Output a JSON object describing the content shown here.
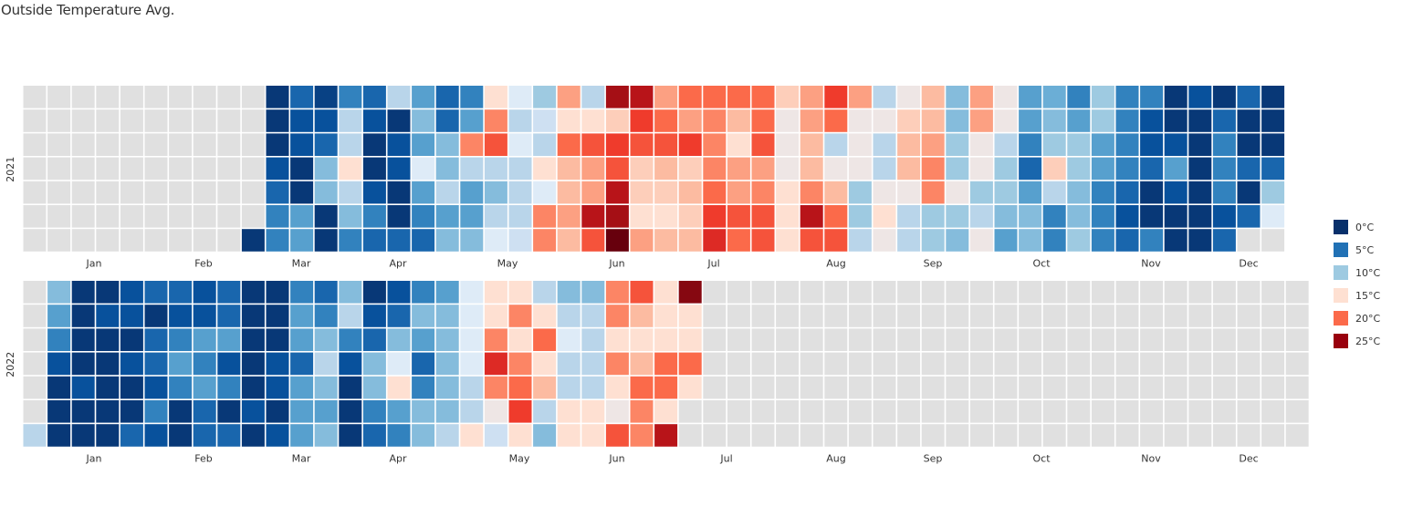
{
  "title": "Outside Temperature Avg.",
  "chart_data": {
    "type": "heatmap",
    "title": "Outside Temperature Avg.",
    "layout": "calendar",
    "unit": "°C",
    "years": [
      {
        "year": "2021",
        "month_labels": [
          "Jan",
          "Feb",
          "Mar",
          "Apr",
          "May",
          "Jun",
          "Jul",
          "Aug",
          "Sep",
          "Oct",
          "Nov",
          "Dec"
        ],
        "week_temperatures": [
          [
            null,
            null,
            null,
            null,
            null,
            null,
            null
          ],
          [
            null,
            null,
            null,
            null,
            null,
            null,
            null
          ],
          [
            null,
            null,
            null,
            null,
            null,
            null,
            null
          ],
          [
            null,
            null,
            null,
            null,
            null,
            null,
            null
          ],
          [
            null,
            null,
            null,
            null,
            null,
            null,
            null
          ],
          [
            null,
            null,
            null,
            null,
            null,
            null,
            null
          ],
          [
            null,
            null,
            null,
            null,
            null,
            null,
            null
          ],
          [
            null,
            null,
            null,
            null,
            null,
            null,
            null
          ],
          [
            null,
            null,
            null,
            null,
            null,
            null,
            null
          ],
          [
            null,
            null,
            null,
            null,
            null,
            null,
            -1
          ],
          [
            -1,
            -1,
            -1,
            2,
            4,
            6,
            6
          ],
          [
            4,
            2,
            2,
            -1,
            -1,
            8,
            8
          ],
          [
            0,
            2,
            4,
            10,
            10,
            -1,
            -1
          ],
          [
            6,
            12,
            12,
            16,
            12,
            10,
            6
          ],
          [
            4,
            2,
            -1,
            -1,
            2,
            6,
            4
          ],
          [
            12,
            -1,
            2,
            2,
            -1,
            -1,
            4
          ],
          [
            8,
            10,
            8,
            14,
            8,
            6,
            4
          ],
          [
            4,
            4,
            10,
            10,
            12,
            8,
            10
          ],
          [
            6,
            8,
            20,
            12,
            8,
            8,
            10
          ],
          [
            16,
            20,
            22,
            12,
            10,
            12,
            14
          ],
          [
            14,
            12,
            14,
            12,
            12,
            12,
            13
          ],
          [
            11,
            13,
            12,
            16,
            14,
            20,
            20
          ],
          [
            19,
            16,
            21,
            18,
            18,
            19,
            18
          ],
          [
            12,
            16,
            22,
            19,
            19,
            26,
            22
          ],
          [
            27,
            17,
            23,
            22,
            26,
            27,
            29
          ],
          [
            26,
            23,
            22,
            17,
            17,
            16,
            19
          ],
          [
            19,
            21,
            22,
            18,
            17,
            16,
            18
          ],
          [
            21,
            19,
            23,
            17,
            18,
            17,
            18
          ],
          [
            21,
            20,
            20,
            20,
            21,
            23,
            24
          ],
          [
            21,
            18,
            16,
            19,
            19,
            22,
            21
          ],
          [
            21,
            21,
            22,
            19,
            20,
            22,
            22
          ],
          [
            17,
            15,
            15,
            15,
            16,
            16,
            16
          ],
          [
            19,
            19,
            18,
            18,
            20,
            26,
            22
          ],
          [
            23,
            21,
            12,
            15,
            18,
            21,
            22
          ],
          [
            19,
            15,
            15,
            15,
            11,
            11,
            12
          ],
          [
            12,
            15,
            12,
            12,
            15,
            16,
            15
          ],
          [
            15,
            17,
            18,
            18,
            15,
            12,
            12
          ],
          [
            18,
            18,
            19,
            20,
            20,
            11,
            11
          ],
          [
            10,
            10,
            11,
            11,
            15,
            11,
            10
          ],
          [
            19,
            19,
            15,
            15,
            11,
            12,
            15
          ],
          [
            15,
            15,
            12,
            11,
            11,
            10,
            8
          ],
          [
            8,
            8,
            6,
            4,
            8,
            10,
            10
          ],
          [
            9,
            10,
            11,
            17,
            12,
            6,
            6
          ],
          [
            6,
            8,
            11,
            11,
            10,
            10,
            11
          ],
          [
            11,
            11,
            8,
            8,
            6,
            6,
            6
          ],
          [
            6,
            6,
            6,
            6,
            4,
            2,
            4
          ],
          [
            6,
            2,
            2,
            4,
            -1,
            -1,
            6
          ],
          [
            -1,
            -1,
            2,
            8,
            2,
            -1,
            -1
          ],
          [
            2,
            -1,
            -1,
            -1,
            -1,
            -1,
            -1
          ],
          [
            -1,
            4,
            6,
            6,
            6,
            2,
            4
          ],
          [
            4,
            -1,
            -1,
            4,
            -1,
            4,
            null
          ],
          [
            -1,
            -1,
            -1,
            4,
            11,
            14,
            null
          ]
        ]
      },
      {
        "year": "2022",
        "month_labels": [
          "Jan",
          "Feb",
          "Mar",
          "Apr",
          "May",
          "Jun",
          "Jul",
          "Aug",
          "Sep",
          "Oct",
          "Nov",
          "Dec"
        ],
        "week_temperatures": [
          [
            null,
            null,
            null,
            null,
            null,
            null,
            12
          ],
          [
            10,
            8,
            6,
            2,
            -1,
            -1,
            -1
          ],
          [
            -1,
            -1,
            -1,
            -1,
            2,
            -1,
            -1
          ],
          [
            -1,
            2,
            -1,
            -1,
            -1,
            -1,
            -1
          ],
          [
            2,
            2,
            -1,
            2,
            -1,
            -1,
            4
          ],
          [
            4,
            -1,
            4,
            4,
            2,
            6,
            2
          ],
          [
            4,
            2,
            6,
            8,
            6,
            -1,
            -1
          ],
          [
            2,
            2,
            8,
            6,
            8,
            4,
            4
          ],
          [
            4,
            4,
            8,
            2,
            6,
            -1,
            4
          ],
          [
            -1,
            -1,
            -1,
            -1,
            -1,
            2,
            -1
          ],
          [
            -1,
            -1,
            -1,
            2,
            2,
            -1,
            2
          ],
          [
            6,
            8,
            8,
            4,
            8,
            8,
            8
          ],
          [
            4,
            6,
            10,
            12,
            10,
            8,
            10
          ],
          [
            10,
            12,
            6,
            2,
            -1,
            -1,
            -1
          ],
          [
            -1,
            2,
            4,
            10,
            10,
            6,
            4
          ],
          [
            2,
            4,
            10,
            14,
            16,
            8,
            6
          ],
          [
            6,
            10,
            8,
            4,
            6,
            10,
            10
          ],
          [
            8,
            10,
            10,
            10,
            10,
            10,
            12
          ],
          [
            14,
            14,
            14,
            14,
            12,
            12,
            16
          ],
          [
            16,
            16,
            20,
            24,
            20,
            15,
            13
          ],
          [
            16,
            20,
            16,
            20,
            21,
            23,
            16
          ],
          [
            12,
            16,
            21,
            16,
            18,
            12,
            10
          ],
          [
            10,
            12,
            14,
            12,
            12,
            16,
            16
          ],
          [
            10,
            12,
            12,
            12,
            12,
            16,
            16
          ],
          [
            20,
            20,
            16,
            20,
            16,
            15,
            22
          ],
          [
            22,
            18,
            16,
            18,
            21,
            20,
            20
          ],
          [
            16,
            16,
            16,
            21,
            21,
            16,
            26
          ],
          [
            28,
            16,
            16,
            21,
            16,
            null,
            null
          ],
          [
            null,
            null,
            null,
            null,
            null,
            null,
            null
          ],
          [
            null,
            null,
            null,
            null,
            null,
            null,
            null
          ],
          [
            null,
            null,
            null,
            null,
            null,
            null,
            null
          ],
          [
            null,
            null,
            null,
            null,
            null,
            null,
            null
          ],
          [
            null,
            null,
            null,
            null,
            null,
            null,
            null
          ],
          [
            null,
            null,
            null,
            null,
            null,
            null,
            null
          ],
          [
            null,
            null,
            null,
            null,
            null,
            null,
            null
          ],
          [
            null,
            null,
            null,
            null,
            null,
            null,
            null
          ],
          [
            null,
            null,
            null,
            null,
            null,
            null,
            null
          ],
          [
            null,
            null,
            null,
            null,
            null,
            null,
            null
          ],
          [
            null,
            null,
            null,
            null,
            null,
            null,
            null
          ],
          [
            null,
            null,
            null,
            null,
            null,
            null,
            null
          ],
          [
            null,
            null,
            null,
            null,
            null,
            null,
            null
          ],
          [
            null,
            null,
            null,
            null,
            null,
            null,
            null
          ],
          [
            null,
            null,
            null,
            null,
            null,
            null,
            null
          ],
          [
            null,
            null,
            null,
            null,
            null,
            null,
            null
          ],
          [
            null,
            null,
            null,
            null,
            null,
            null,
            null
          ],
          [
            null,
            null,
            null,
            null,
            null,
            null,
            null
          ],
          [
            null,
            null,
            null,
            null,
            null,
            null,
            null
          ],
          [
            null,
            null,
            null,
            null,
            null,
            null,
            null
          ],
          [
            null,
            null,
            null,
            null,
            null,
            null,
            null
          ],
          [
            null,
            null,
            null,
            null,
            null,
            null,
            null
          ],
          [
            null,
            null,
            null,
            null,
            null,
            null,
            null
          ],
          [
            null,
            null,
            null,
            null,
            null,
            null,
            null
          ],
          [
            null,
            null,
            null,
            null,
            null,
            null,
            null
          ]
        ]
      }
    ],
    "legend": {
      "placement": "right",
      "entries": [
        {
          "label": "0°C",
          "value": 0,
          "color": "#08306b"
        },
        {
          "label": "5°C",
          "value": 5,
          "color": "#2171b5"
        },
        {
          "label": "10°C",
          "value": 10,
          "color": "#9ecae1"
        },
        {
          "label": "15°C",
          "value": 15,
          "color": "#fee0d2"
        },
        {
          "label": "20°C",
          "value": 20,
          "color": "#fb6a4a"
        },
        {
          "label": "25°C",
          "value": 25,
          "color": "#99000d"
        }
      ]
    },
    "color_scale": [
      {
        "t": -2,
        "color": "#08306b"
      },
      {
        "t": 2,
        "color": "#08519c"
      },
      {
        "t": 5,
        "color": "#2171b5"
      },
      {
        "t": 7,
        "color": "#4292c6"
      },
      {
        "t": 9,
        "color": "#6baed6"
      },
      {
        "t": 11,
        "color": "#9ecae1"
      },
      {
        "t": 12.5,
        "color": "#c6dbef"
      },
      {
        "t": 14,
        "color": "#deebf7"
      },
      {
        "t": 16,
        "color": "#fee0d2"
      },
      {
        "t": 18,
        "color": "#fcbba1"
      },
      {
        "t": 19.5,
        "color": "#fc9272"
      },
      {
        "t": 21,
        "color": "#fb6a4a"
      },
      {
        "t": 23,
        "color": "#ef3b2c"
      },
      {
        "t": 25,
        "color": "#cb181d"
      },
      {
        "t": 27,
        "color": "#a50f15"
      },
      {
        "t": 29,
        "color": "#67000d"
      }
    ],
    "empty_color": "#e0e0e0"
  }
}
